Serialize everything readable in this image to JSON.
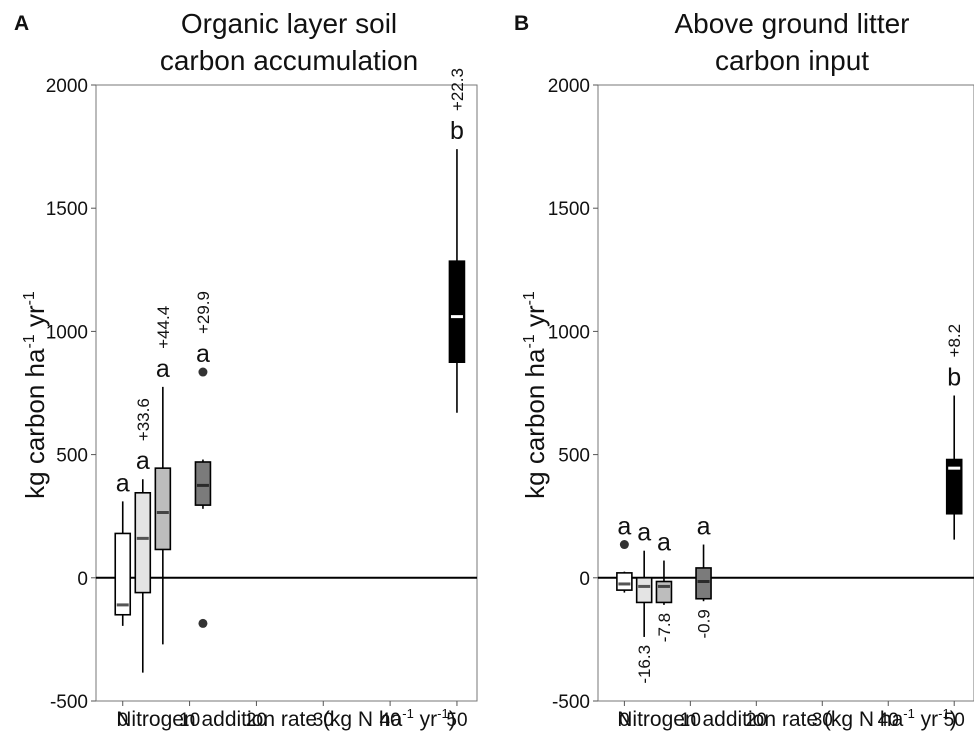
{
  "chart_data": [
    {
      "type": "box",
      "panel": "A",
      "title_lines": [
        "Organic layer soil",
        "carbon accumulation"
      ],
      "ylabel": {
        "main": "kg carbon ha",
        "sup1": "-1",
        "mid": " yr",
        "sup2": "-1"
      },
      "xlabel": {
        "main": "Nitrogen addition rate (kg N ha",
        "sup1": "-1",
        "mid": " yr",
        "sup2": "-1",
        "end": ")"
      },
      "xlim": [
        -4,
        53
      ],
      "ylim": [
        -500,
        2000
      ],
      "xticks": [
        0,
        10,
        20,
        30,
        40,
        50
      ],
      "yticks": [
        -500,
        0,
        500,
        1000,
        1500,
        2000
      ],
      "reference_line": 0,
      "boxes": [
        {
          "x": 0,
          "q1": -150,
          "median": -110,
          "q3": 180,
          "whisker_low": -195,
          "whisker_high": 310,
          "outliers": [],
          "fill": "#ffffff",
          "median_color": "#555555",
          "letter": "a",
          "change": ""
        },
        {
          "x": 3,
          "q1": -60,
          "median": 160,
          "q3": 345,
          "whisker_low": -385,
          "whisker_high": 400,
          "outliers": [],
          "fill": "#e4e4e4",
          "median_color": "#555555",
          "letter": "a",
          "change": "+33.6"
        },
        {
          "x": 6,
          "q1": 115,
          "median": 265,
          "q3": 445,
          "whisker_low": -270,
          "whisker_high": 775,
          "outliers": [],
          "fill": "#bdbdbd",
          "median_color": "#444444",
          "letter": "a",
          "change": "+44.4"
        },
        {
          "x": 12,
          "q1": 295,
          "median": 375,
          "q3": 470,
          "whisker_low": 280,
          "whisker_high": 480,
          "outliers": [
            835,
            -185
          ],
          "fill": "#7b7b7b",
          "median_color": "#2a2a2a",
          "letter": "a",
          "change": "+29.9"
        },
        {
          "x": 50,
          "q1": 875,
          "median": 1060,
          "q3": 1285,
          "whisker_low": 670,
          "whisker_high": 1740,
          "outliers": [],
          "fill": "#000000",
          "median_color": "#ffffff",
          "letter": "b",
          "change": "+22.3"
        }
      ]
    },
    {
      "type": "box",
      "panel": "B",
      "title_lines": [
        "Above ground litter",
        "carbon input"
      ],
      "ylabel": {
        "main": "kg carbon ha",
        "sup1": "-1",
        "mid": " yr",
        "sup2": "-1"
      },
      "xlabel": {
        "main": "Nitrogen addition rate (kg N ha",
        "sup1": "-1",
        "mid": " yr",
        "sup2": "-1",
        "end": ")"
      },
      "xlim": [
        -4,
        53
      ],
      "ylim": [
        -500,
        2000
      ],
      "xticks": [
        0,
        10,
        20,
        30,
        40,
        50
      ],
      "yticks": [
        -500,
        0,
        500,
        1000,
        1500,
        2000
      ],
      "reference_line": 0,
      "boxes": [
        {
          "x": 0,
          "q1": -50,
          "median": -25,
          "q3": 20,
          "whisker_low": -60,
          "whisker_high": 25,
          "outliers": [
            135
          ],
          "fill": "#ffffff",
          "median_color": "#555555",
          "letter": "a",
          "change": ""
        },
        {
          "x": 3,
          "q1": -100,
          "median": -35,
          "q3": 0,
          "whisker_low": -240,
          "whisker_high": 110,
          "outliers": [],
          "fill": "#e4e4e4",
          "median_color": "#555555",
          "letter": "a",
          "change": "-16.3"
        },
        {
          "x": 6,
          "q1": -100,
          "median": -35,
          "q3": -15,
          "whisker_low": -110,
          "whisker_high": 70,
          "outliers": [],
          "fill": "#bdbdbd",
          "median_color": "#444444",
          "letter": "a",
          "change": "-7.8"
        },
        {
          "x": 12,
          "q1": -85,
          "median": -15,
          "q3": 40,
          "whisker_low": -95,
          "whisker_high": 135,
          "outliers": [],
          "fill": "#7b7b7b",
          "median_color": "#2a2a2a",
          "letter": "a",
          "change": "-0.9"
        },
        {
          "x": 50,
          "q1": 260,
          "median": 445,
          "q3": 480,
          "whisker_low": 155,
          "whisker_high": 740,
          "outliers": [],
          "fill": "#000000",
          "median_color": "#ffffff",
          "letter": "b",
          "change": "+8.2"
        }
      ]
    }
  ]
}
